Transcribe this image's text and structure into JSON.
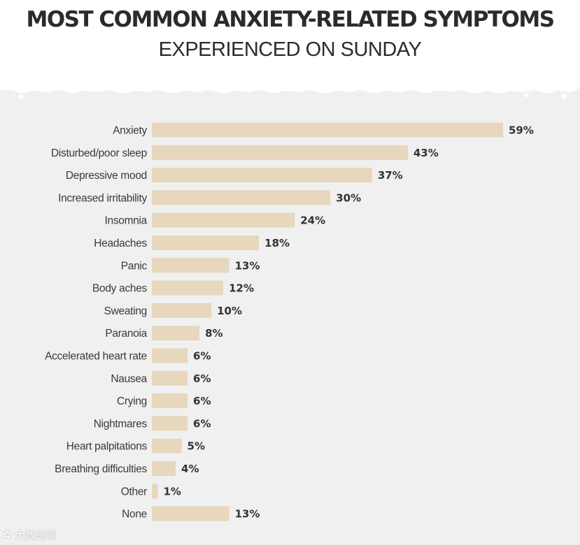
{
  "chart_data": {
    "type": "bar",
    "orientation": "horizontal",
    "title": "MOST COMMON ANXIETY-RELATED SYMPTOMS",
    "subtitle": "EXPERIENCED ON SUNDAY",
    "categories": [
      "Anxiety",
      "Disturbed/poor sleep",
      "Depressive mood",
      "Increased irritability",
      "Insomnia",
      "Headaches",
      "Panic",
      "Body aches",
      "Sweating",
      "Paranoia",
      "Accelerated heart rate",
      "Nausea",
      "Crying",
      "Nightmares",
      "Heart palpitations",
      "Breathing difficulties",
      "Other",
      "None"
    ],
    "values": [
      59,
      43,
      37,
      30,
      24,
      18,
      13,
      12,
      10,
      8,
      6,
      6,
      6,
      6,
      5,
      4,
      1,
      13
    ],
    "value_labels": [
      "59%",
      "43%",
      "37%",
      "30%",
      "24%",
      "18%",
      "13%",
      "12%",
      "10%",
      "8%",
      "6%",
      "6%",
      "6%",
      "6%",
      "5%",
      "4%",
      "1%",
      "13%"
    ],
    "unit": "%",
    "xlim": [
      0,
      59
    ],
    "grid": false,
    "legend": "none",
    "colors": {
      "bar": "#e6d7bd",
      "background": "#f0f0f0"
    }
  },
  "watermark": {
    "icon": "paw-icon",
    "text": "大数跨境"
  }
}
